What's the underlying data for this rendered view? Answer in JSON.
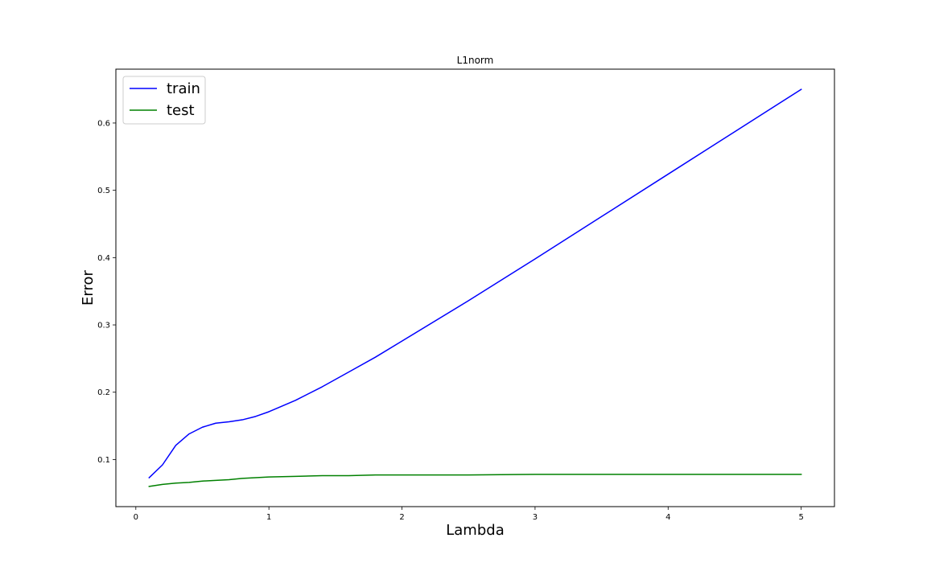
{
  "chart_data": {
    "type": "line",
    "title": "L1norm",
    "xlabel": "Lambda",
    "ylabel": "Error",
    "xlim": [
      -0.15,
      5.25
    ],
    "ylim": [
      0.03,
      0.68
    ],
    "xticks": [
      0,
      1,
      2,
      3,
      4,
      5
    ],
    "xtick_labels": [
      "0",
      "1",
      "2",
      "3",
      "4",
      "5"
    ],
    "yticks": [
      0.1,
      0.2,
      0.3,
      0.4,
      0.5,
      0.6
    ],
    "ytick_labels": [
      "0.1",
      "0.2",
      "0.3",
      "0.4",
      "0.5",
      "0.6"
    ],
    "grid": false,
    "legend_position": "upper-left",
    "x": [
      0.1,
      0.2,
      0.3,
      0.4,
      0.5,
      0.6,
      0.7,
      0.8,
      0.9,
      1.0,
      1.2,
      1.4,
      1.6,
      1.8,
      2.0,
      2.5,
      3.0,
      3.5,
      4.0,
      4.5,
      5.0
    ],
    "series": [
      {
        "name": "train",
        "color": "#0000ff",
        "values": [
          0.073,
          0.092,
          0.121,
          0.138,
          0.148,
          0.154,
          0.156,
          0.159,
          0.164,
          0.171,
          0.188,
          0.208,
          0.23,
          0.252,
          0.276,
          0.336,
          0.398,
          0.461,
          0.524,
          0.587,
          0.65
        ]
      },
      {
        "name": "test",
        "color": "#008000",
        "values": [
          0.06,
          0.063,
          0.065,
          0.066,
          0.068,
          0.069,
          0.07,
          0.072,
          0.073,
          0.074,
          0.075,
          0.076,
          0.076,
          0.077,
          0.077,
          0.077,
          0.078,
          0.078,
          0.078,
          0.078,
          0.078
        ]
      }
    ]
  }
}
